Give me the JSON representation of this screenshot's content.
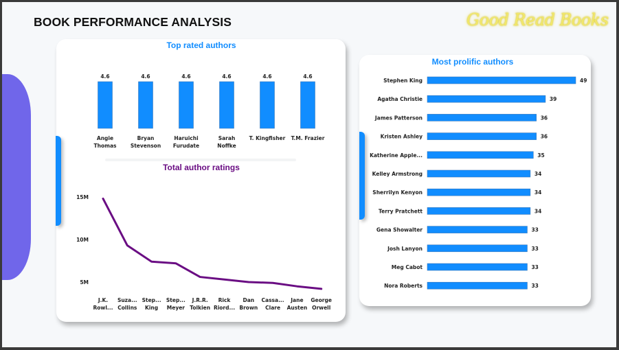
{
  "header": {
    "title": "BOOK PERFORMANCE ANALYSIS",
    "brand": "Good Read Books"
  },
  "colors": {
    "bar": "#118dff",
    "line": "#6a0d83",
    "accent": "#7066ea",
    "blue_title": "#118dff",
    "purple_title": "#6a0d83"
  },
  "chart_data": [
    {
      "type": "bar",
      "title": "Top rated authors",
      "categories": [
        "Angie Thomas",
        "Bryan Stevenson",
        "Haruichi Furudate",
        "Sarah Noffke",
        "T. Kingfisher",
        "T.M. Frazier"
      ],
      "category_lines": [
        [
          "Angie",
          "Thomas"
        ],
        [
          "Bryan",
          "Stevenson"
        ],
        [
          "Haruichi",
          "Furudate"
        ],
        [
          "Sarah",
          "Noffke"
        ],
        [
          "T. Kingfisher"
        ],
        [
          "T.M. Frazier"
        ]
      ],
      "values": [
        4.6,
        4.6,
        4.6,
        4.6,
        4.6,
        4.6
      ],
      "data_labels": [
        "4.6",
        "4.6",
        "4.6",
        "4.6",
        "4.6",
        "4.6"
      ],
      "xlabel": "",
      "ylabel": "",
      "grid": false
    },
    {
      "type": "line",
      "title": "Total author ratings",
      "categories": [
        "J.K. Rowling",
        "Suzanne Collins",
        "Stephen King",
        "Stephenie Meyer",
        "J.R.R. Tolkien",
        "Rick Riordan",
        "Dan Brown",
        "Cassandra Clare",
        "Jane Austen",
        "George Orwell"
      ],
      "category_lines": [
        [
          "J.K.",
          "Rowl..."
        ],
        [
          "Suza...",
          "Collins"
        ],
        [
          "Step...",
          "King"
        ],
        [
          "Step...",
          "Meyer"
        ],
        [
          "J.R.R.",
          "Tolkien"
        ],
        [
          "Rick",
          "Riord..."
        ],
        [
          "Dan",
          "Brown"
        ],
        [
          "Cassa...",
          "Clare"
        ],
        [
          "Jane",
          "Austen"
        ],
        [
          "George",
          "Orwell"
        ]
      ],
      "values": [
        14800000,
        9300000,
        7400000,
        7200000,
        5600000,
        5300000,
        5000000,
        4900000,
        4500000,
        4200000
      ],
      "yticks": [
        5000000,
        10000000,
        15000000
      ],
      "ytick_labels": [
        "5M",
        "10M",
        "15M"
      ],
      "ylim": [
        3000000,
        16500000
      ],
      "xlabel": "",
      "ylabel": "",
      "grid": false
    },
    {
      "type": "bar",
      "orientation": "horizontal",
      "title": "Most prolific authors",
      "categories": [
        "Stephen King",
        "Agatha Christie",
        "James Patterson",
        "Kristen Ashley",
        "Katherine Apple...",
        "Kelley Armstrong",
        "Sherrilyn Kenyon",
        "Terry Pratchett",
        "Gena Showalter",
        "Josh Lanyon",
        "Meg Cabot",
        "Nora Roberts"
      ],
      "values": [
        49,
        39,
        36,
        36,
        35,
        34,
        34,
        34,
        33,
        33,
        33,
        33
      ],
      "data_labels": [
        "49",
        "39",
        "36",
        "36",
        "35",
        "34",
        "34",
        "34",
        "33",
        "33",
        "33",
        "33"
      ],
      "xlim": [
        0,
        49
      ],
      "xlabel": "",
      "ylabel": "",
      "grid": false
    }
  ]
}
